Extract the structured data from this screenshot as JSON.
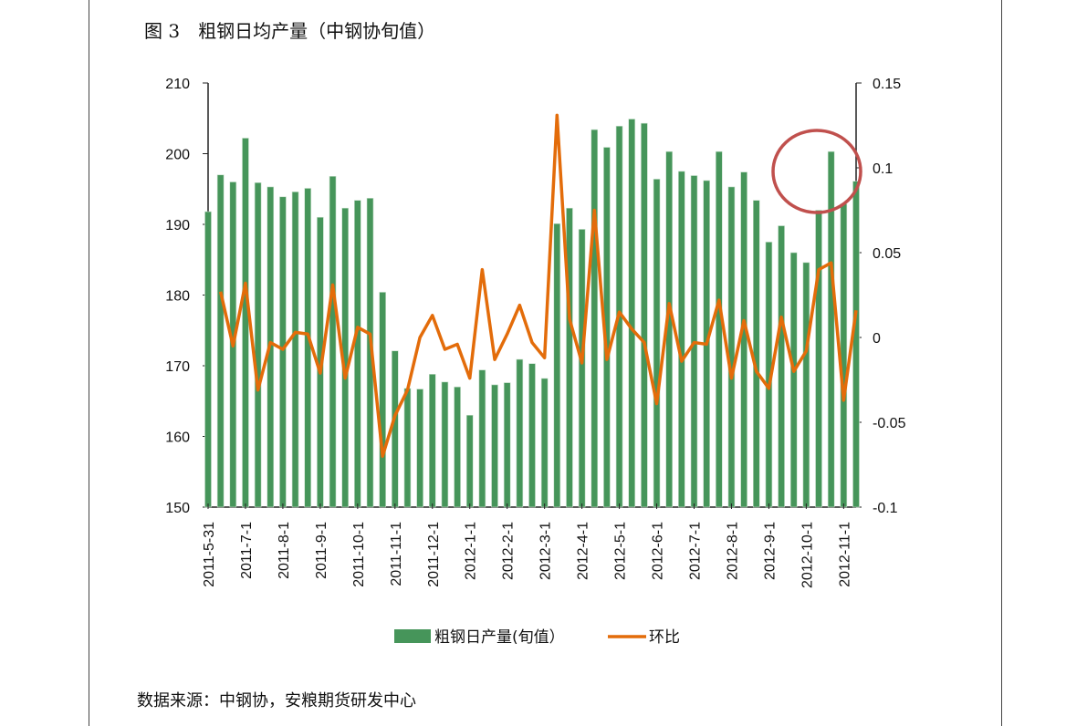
{
  "title": "图 3　粗钢日均产量（中钢协旬值）",
  "source": "数据来源：中钢协，安粮期货研发中心",
  "chart_data": {
    "type": "bar+line",
    "tick_labels": [
      "2011-5-31",
      "2011-7-1",
      "2011-8-1",
      "2011-9-1",
      "2011-10-1",
      "2011-11-1",
      "2011-12-1",
      "2012-1-1",
      "2012-2-1",
      "2012-3-1",
      "2012-4-1",
      "2012-5-1",
      "2012-6-1",
      "2012-7-1",
      "2012-8-1",
      "2012-9-1",
      "2012-10-1",
      "2012-11-1"
    ],
    "y_left": {
      "range": [
        150,
        210
      ],
      "ticks": [
        "150",
        "160",
        "170",
        "180",
        "190",
        "200",
        "210"
      ]
    },
    "y_right": {
      "range": [
        -0.1,
        0.15
      ],
      "ticks": [
        "-0.1",
        "-0.05",
        "0",
        "0.05",
        "0.1",
        "0.15"
      ]
    },
    "grid": false,
    "legend_position": "bottom",
    "series": [
      {
        "name": "粗钢日产量(旬值）",
        "type": "bar",
        "axis": "left",
        "color": "#46955a",
        "values": [
          191.8,
          197,
          196,
          202.2,
          195.9,
          195.3,
          193.9,
          194.6,
          195.1,
          191,
          196.8,
          192.3,
          193.4,
          193.7,
          180.4,
          172.1,
          166.8,
          166.7,
          168.8,
          167.7,
          167,
          163,
          169.4,
          167.3,
          167.6,
          170.9,
          170.3,
          168.2,
          190.1,
          192.3,
          189.3,
          203.4,
          200.9,
          203.9,
          204.9,
          204.3,
          196.4,
          200.3,
          197.5,
          196.9,
          196.2,
          200.3,
          195.3,
          197.4,
          193.4,
          187.5,
          189.8,
          186,
          184.6,
          192,
          200.3,
          192.9,
          196.1
        ]
      },
      {
        "name": "环比",
        "type": "line",
        "axis": "right",
        "color": "#e36c0a",
        "values": [
          null,
          0.027,
          -0.005,
          0.032,
          -0.031,
          -0.003,
          -0.007,
          0.003,
          0.002,
          -0.021,
          0.031,
          -0.024,
          0.006,
          0.002,
          -0.07,
          -0.046,
          -0.031,
          0,
          0.013,
          -0.007,
          -0.004,
          -0.024,
          0.04,
          -0.013,
          0.002,
          0.019,
          -0.003,
          -0.012,
          0.131,
          0.011,
          -0.015,
          0.075,
          -0.013,
          0.015,
          0.005,
          -0.003,
          -0.039,
          0.02,
          -0.014,
          -0.003,
          -0.004,
          0.022,
          -0.024,
          0.01,
          -0.02,
          -0.03,
          0.012,
          -0.02,
          -0.008,
          0.04,
          0.044,
          -0.037,
          0.016
        ]
      }
    ],
    "annotation": {
      "shape": "circle",
      "color": "#c0504d"
    }
  }
}
